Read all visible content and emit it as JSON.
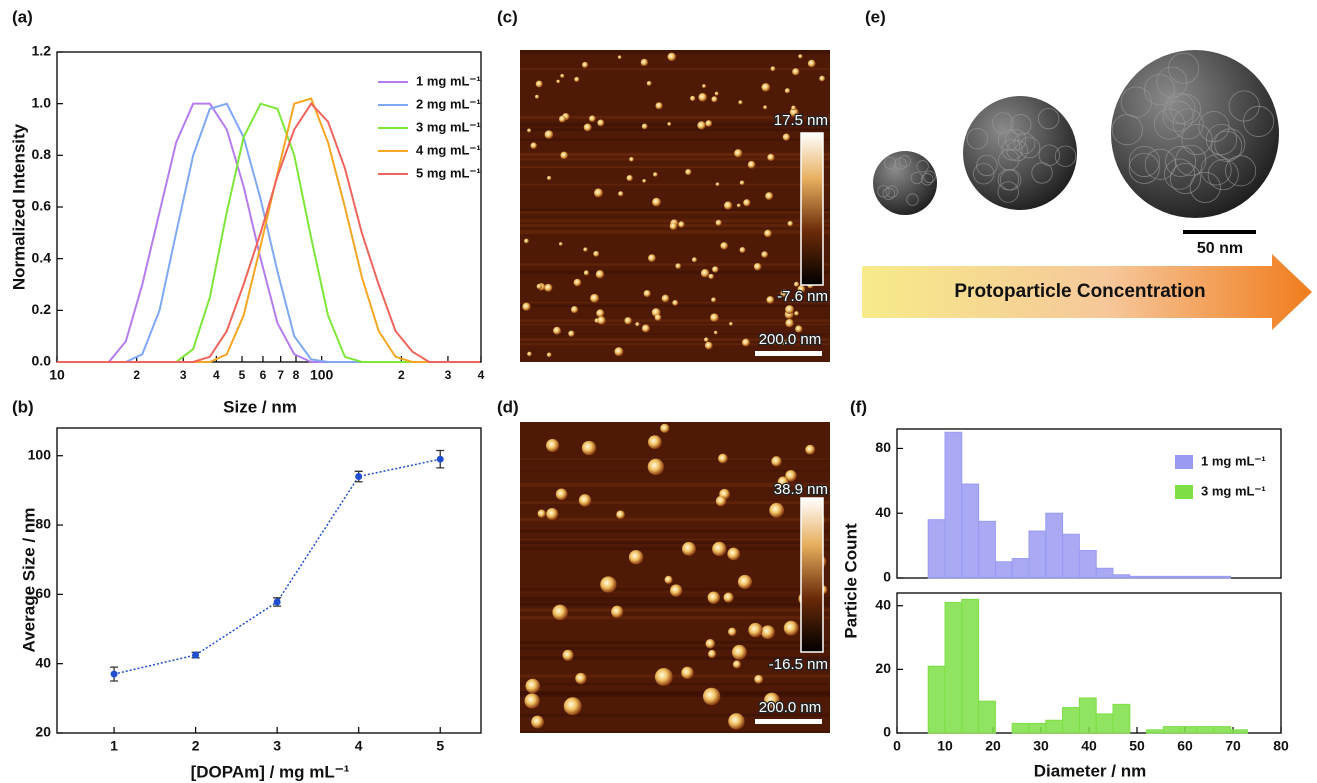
{
  "chart_data": [
    {
      "type": "line",
      "panel_label": "(a)",
      "xlabel": "Size / nm",
      "ylabel": "Normalized Intensity",
      "xlog": true,
      "legend": "upper right",
      "x": [
        10,
        11.7,
        13.5,
        15.7,
        18.2,
        21,
        24.4,
        28.2,
        32.7,
        37.8,
        43.8,
        50.7,
        58.8,
        68.1,
        78.8,
        91.3,
        105.7,
        122.4,
        141.8,
        164.2,
        190.1,
        220.2,
        255,
        295.3,
        342,
        396.1
      ],
      "xlim": [
        10,
        400
      ],
      "xticks": [
        10,
        {
          "value": 20,
          "label": "2"
        },
        {
          "value": 30,
          "label": "3"
        },
        {
          "value": 40,
          "label": "4"
        },
        {
          "value": 50,
          "label": "5"
        },
        {
          "value": 60,
          "label": "6"
        },
        {
          "value": 70,
          "label": "7"
        },
        {
          "value": 80,
          "label": "8"
        },
        100,
        {
          "value": 200,
          "label": "2"
        },
        {
          "value": 300,
          "label": "3"
        },
        {
          "value": 400,
          "label": "4"
        }
      ],
      "ylim": [
        0,
        1.2
      ],
      "yticks": [
        {
          "value": 0,
          "label": "0.0"
        },
        {
          "value": 0.2,
          "label": "0.2"
        },
        {
          "value": 0.4,
          "label": "0.4"
        },
        {
          "value": 0.6,
          "label": "0.6"
        },
        {
          "value": 0.8,
          "label": "0.8"
        },
        {
          "value": 1,
          "label": "1.0"
        },
        {
          "value": 1.2,
          "label": "1.2"
        }
      ],
      "series": [
        {
          "name": "1 mg mL⁻¹",
          "color": "#b57cf0",
          "values": [
            0,
            0,
            0,
            0,
            0.08,
            0.3,
            0.58,
            0.85,
            1.0,
            1.0,
            0.9,
            0.68,
            0.4,
            0.15,
            0.03,
            0,
            0,
            0,
            0,
            0,
            0,
            0,
            0,
            0,
            0,
            0
          ]
        },
        {
          "name": "2 mg mL⁻¹",
          "color": "#7fa8f5",
          "values": [
            0,
            0,
            0,
            0,
            0,
            0.03,
            0.2,
            0.5,
            0.8,
            0.98,
            1.0,
            0.87,
            0.63,
            0.35,
            0.1,
            0.01,
            0,
            0,
            0,
            0,
            0,
            0,
            0,
            0,
            0,
            0
          ]
        },
        {
          "name": "3 mg mL⁻¹",
          "color": "#7de83a",
          "values": [
            0,
            0,
            0,
            0,
            0,
            0,
            0,
            0,
            0.05,
            0.25,
            0.58,
            0.87,
            1.0,
            0.98,
            0.8,
            0.48,
            0.18,
            0.02,
            0,
            0,
            0,
            0,
            0,
            0,
            0,
            0
          ]
        },
        {
          "name": "4 mg mL⁻¹",
          "color": "#f5a623",
          "values": [
            0,
            0,
            0,
            0,
            0,
            0,
            0,
            0,
            0,
            0,
            0.03,
            0.18,
            0.45,
            0.73,
            1.0,
            1.02,
            0.85,
            0.6,
            0.33,
            0.12,
            0.02,
            0,
            0,
            0,
            0,
            0
          ]
        },
        {
          "name": "5 mg mL⁻¹",
          "color": "#f0645e",
          "values": [
            0,
            0,
            0,
            0,
            0,
            0,
            0,
            0,
            0,
            0.02,
            0.12,
            0.3,
            0.5,
            0.72,
            0.9,
            1.0,
            0.93,
            0.75,
            0.5,
            0.3,
            0.12,
            0.04,
            0,
            0,
            0,
            0
          ]
        }
      ]
    },
    {
      "type": "errorbar",
      "panel_label": "(b)",
      "xlabel": "[DOPAm] / mg mL⁻¹",
      "ylabel": "Average Size / nm",
      "x": [
        1,
        2,
        3,
        4,
        5
      ],
      "values": [
        37,
        42.5,
        57.8,
        94,
        99
      ],
      "errors": [
        2,
        0.8,
        1.2,
        1.5,
        2.5
      ],
      "color": "#1f4fd0",
      "xlim": [
        0.3,
        5.5
      ],
      "xticks": [
        1,
        2,
        3,
        4,
        5
      ],
      "ylim": [
        20,
        108
      ],
      "yticks": [
        20,
        40,
        60,
        80,
        100
      ]
    },
    {
      "type": "histogram",
      "panel_label": "(f)",
      "legend": "upper right",
      "bins": [
        6.5,
        10,
        13.5,
        17,
        20.5,
        24,
        27.5,
        31,
        34.5,
        38,
        41.5,
        45,
        48.5,
        52,
        55.5,
        59,
        62.5,
        66,
        69.5,
        73,
        76.5
      ],
      "series": [
        {
          "name": "1 mg mL⁻¹",
          "color": "#9a9af2",
          "values": [
            36,
            90,
            58,
            35,
            10,
            12,
            29,
            40,
            27,
            17,
            6,
            2,
            1,
            1,
            1,
            1,
            1,
            1,
            0,
            0
          ]
        }
      ],
      "xlim": [
        0,
        80
      ],
      "ylim": [
        0,
        92
      ],
      "yticks": [
        0,
        40,
        80
      ]
    },
    {
      "type": "histogram",
      "xlabel": "Diameter / nm",
      "ylabel": "Particle Count",
      "legend": "upper right",
      "bins": [
        6.5,
        10,
        13.5,
        17,
        20.5,
        24,
        27.5,
        31,
        34.5,
        38,
        41.5,
        45,
        48.5,
        52,
        55.5,
        59,
        62.5,
        66,
        69.5,
        73,
        76.5
      ],
      "series": [
        {
          "name": "3 mg mL⁻¹",
          "color": "#7ddf45",
          "values": [
            21,
            41,
            42,
            10,
            0,
            3,
            3,
            4,
            8,
            11,
            6,
            9,
            0,
            1,
            2,
            2,
            2,
            2,
            1,
            0
          ]
        }
      ],
      "xlim": [
        0,
        80
      ],
      "xticks": [
        0,
        10,
        20,
        30,
        40,
        50,
        60,
        70,
        80
      ],
      "ylim": [
        0,
        44
      ],
      "yticks": [
        0,
        20,
        40
      ]
    }
  ],
  "images": [
    {
      "panel_label": "(c)",
      "scale_max": "17.5 nm",
      "scale_min": "-7.6 nm",
      "scale_bar": "200.0 nm"
    },
    {
      "panel_label": "(d)",
      "scale_max": "38.9 nm",
      "scale_min": "-16.5 nm",
      "scale_bar": "200.0 nm"
    }
  ],
  "diagram": {
    "panel_label": "(e)",
    "scale_bar": "50 nm",
    "arrow_label": "Protoparticle Concentration"
  }
}
